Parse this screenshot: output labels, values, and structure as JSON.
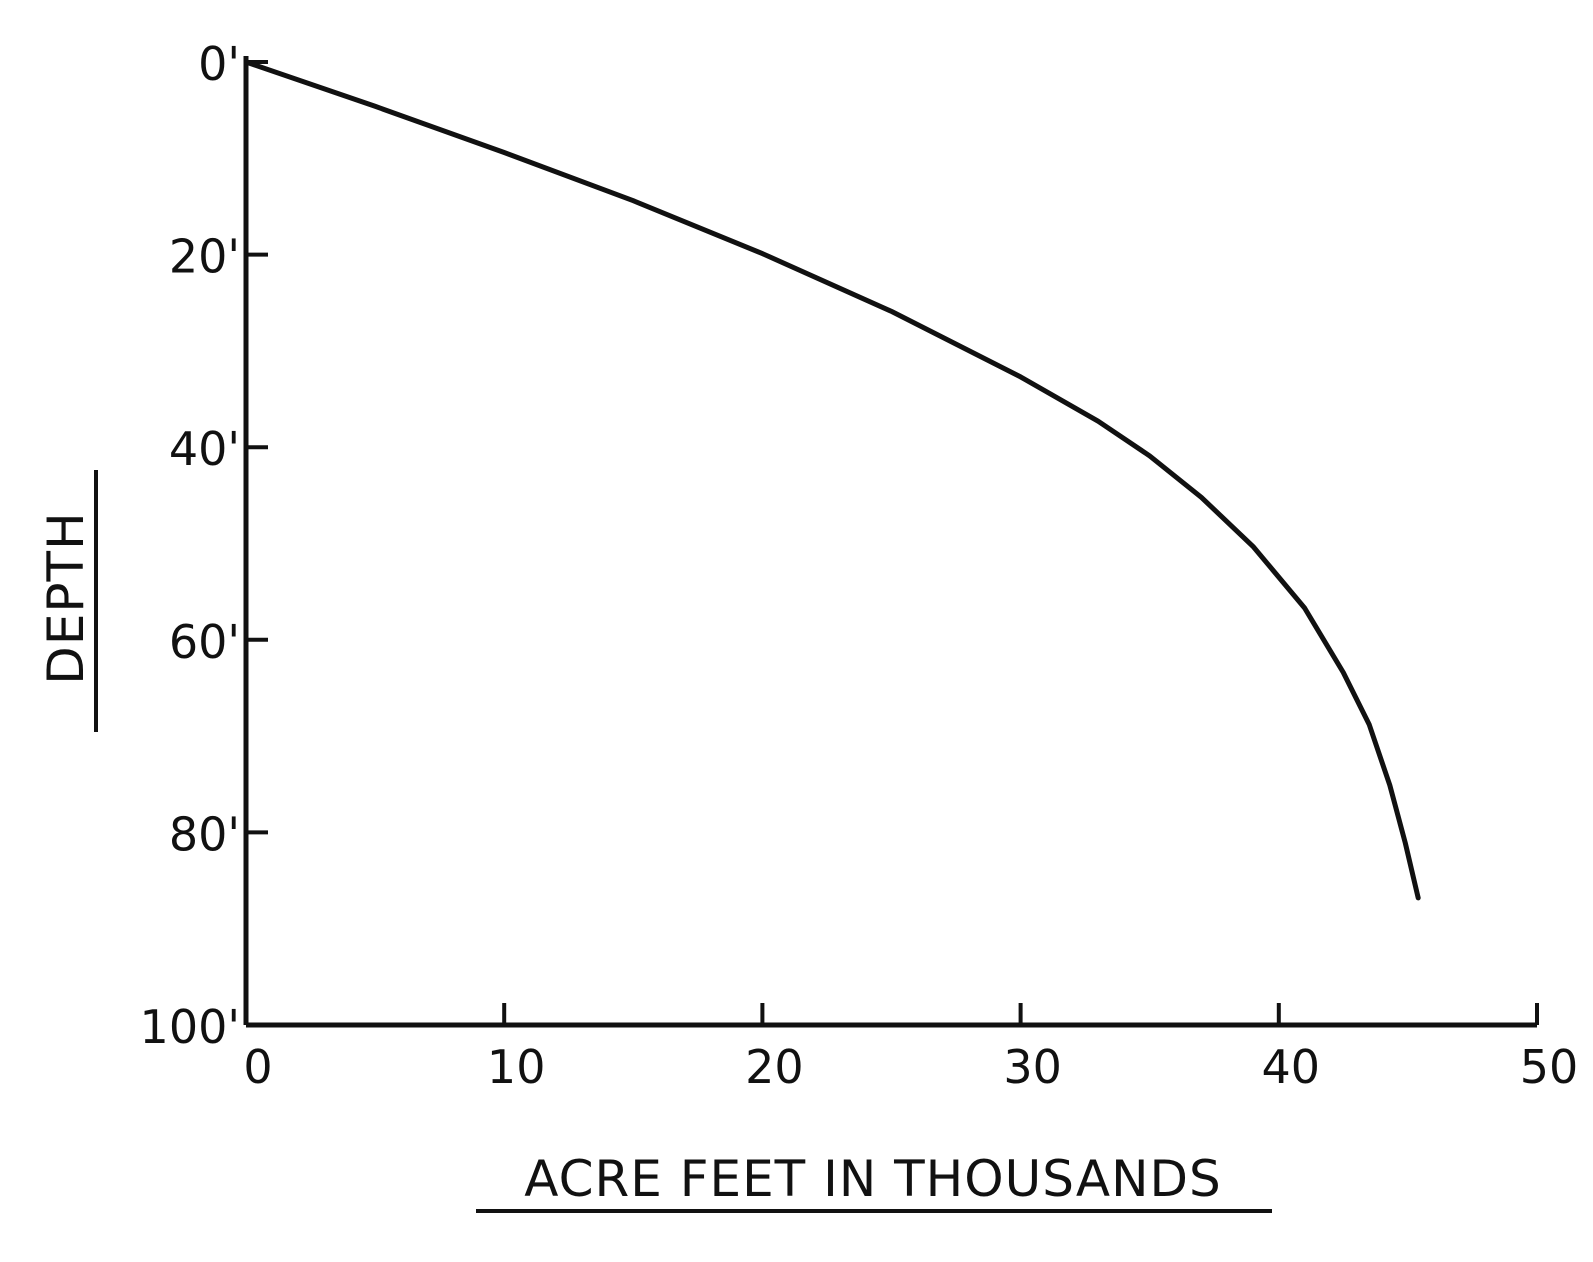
{
  "chart_data": {
    "type": "line",
    "title": "",
    "xlabel": "ACRE FEET IN THOUSANDS",
    "ylabel": "DEPTH",
    "xlim": [
      0,
      50
    ],
    "ylim": [
      0,
      100
    ],
    "y_axis_inverted": true,
    "grid": false,
    "legend": "none",
    "x_ticks": [
      {
        "value": 0,
        "label": "0"
      },
      {
        "value": 10,
        "label": "10"
      },
      {
        "value": 20,
        "label": "20"
      },
      {
        "value": 30,
        "label": "30"
      },
      {
        "value": 40,
        "label": "40"
      },
      {
        "value": 50,
        "label": "50"
      }
    ],
    "y_ticks": [
      {
        "value": 0,
        "label": "0'"
      },
      {
        "value": 20,
        "label": "20'"
      },
      {
        "value": 40,
        "label": "40'"
      },
      {
        "value": 60,
        "label": "60'"
      },
      {
        "value": 80,
        "label": "80'"
      },
      {
        "value": 100,
        "label": "100'"
      }
    ],
    "series": [
      {
        "x": [
          0,
          5,
          10,
          15,
          20,
          25,
          30,
          33,
          35,
          37,
          39,
          41,
          42.5,
          43.5,
          44.3,
          44.9,
          45.4
        ],
        "y": [
          0,
          4.6,
          9.4,
          14.4,
          19.9,
          25.9,
          32.7,
          37.3,
          40.9,
          45.2,
          50.3,
          56.7,
          63.4,
          68.8,
          75.1,
          81.1,
          86.8
        ]
      }
    ],
    "colors": {
      "line": "#111111",
      "axis": "#111111"
    }
  }
}
